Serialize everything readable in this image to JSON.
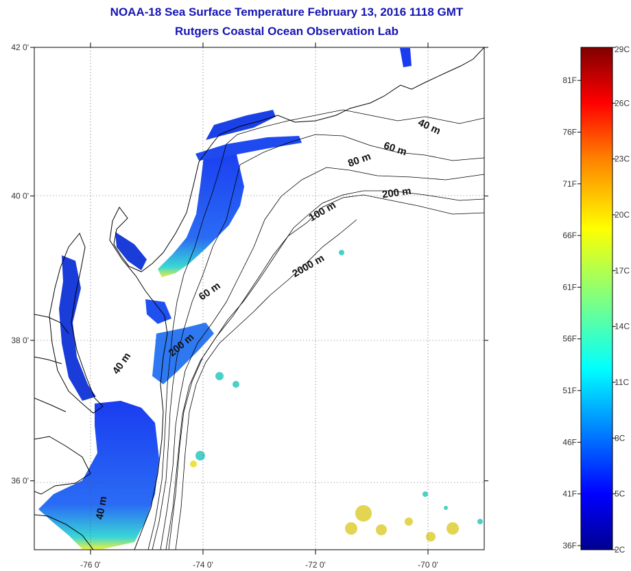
{
  "title": "NOAA-18 Sea Surface Temperature February 13, 2016 1118 GMT",
  "subtitle": "Rutgers Coastal Ocean Observation Lab",
  "lat_ticks": [
    {
      "label": "42 0'",
      "value": 42
    },
    {
      "label": "40 0'",
      "value": 40
    },
    {
      "label": "38 0'",
      "value": 38
    },
    {
      "label": "36 0'",
      "value": 36
    }
  ],
  "lon_ticks": [
    {
      "label": "-76 0'",
      "value": -76
    },
    {
      "label": "-74 0'",
      "value": -74
    },
    {
      "label": "-72 0'",
      "value": -72
    },
    {
      "label": "-70 0'",
      "value": -70
    }
  ],
  "isobaths": [
    {
      "label": "40 m",
      "lon": -70.0,
      "lat": 40.9
    },
    {
      "label": "60 m",
      "lon": -70.6,
      "lat": 40.6
    },
    {
      "label": "80 m",
      "lon": -71.2,
      "lat": 40.45
    },
    {
      "label": "200 m",
      "lon": -70.55,
      "lat": 40.0
    },
    {
      "label": "100 m",
      "lon": -71.85,
      "lat": 39.75
    },
    {
      "label": "2000 m",
      "lon": -72.1,
      "lat": 39.0
    },
    {
      "label": "60 m",
      "lon": -73.85,
      "lat": 38.65
    },
    {
      "label": "200 m",
      "lon": -74.35,
      "lat": 37.9
    },
    {
      "label": "40 m",
      "lon": -75.4,
      "lat": 37.65
    },
    {
      "label": "40 m",
      "lon": -75.75,
      "lat": 35.6
    }
  ],
  "colorbar": {
    "celsius": [
      {
        "label": "29C",
        "value": 29
      },
      {
        "label": "26C",
        "value": 26
      },
      {
        "label": "23C",
        "value": 23
      },
      {
        "label": "20C",
        "value": 20
      },
      {
        "label": "17C",
        "value": 17
      },
      {
        "label": "14C",
        "value": 14
      },
      {
        "label": "11C",
        "value": 11
      },
      {
        "label": "8C",
        "value": 8
      },
      {
        "label": "5C",
        "value": 5
      },
      {
        "label": "2C",
        "value": 2
      }
    ],
    "fahrenheit": [
      {
        "label": "81F",
        "value": 81
      },
      {
        "label": "76F",
        "value": 76
      },
      {
        "label": "71F",
        "value": 71
      },
      {
        "label": "66F",
        "value": 66
      },
      {
        "label": "61F",
        "value": 61
      },
      {
        "label": "56F",
        "value": 56
      },
      {
        "label": "51F",
        "value": 51
      },
      {
        "label": "46F",
        "value": 46
      },
      {
        "label": "41F",
        "value": 41
      },
      {
        "label": "36F",
        "value": 36
      }
    ],
    "min_c": 2,
    "max_c": 29,
    "colors": [
      "#00008f",
      "#0000ff",
      "#0080ff",
      "#00ffff",
      "#80ff80",
      "#ffff00",
      "#ff8000",
      "#ff0000",
      "#800000"
    ]
  },
  "colors": {
    "title": "#1414b4",
    "land": "#ffffff",
    "coast": "#000000"
  }
}
